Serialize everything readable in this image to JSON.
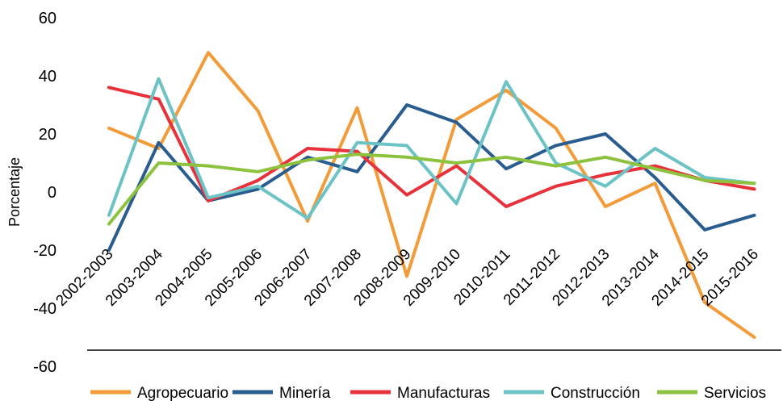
{
  "chart_data": {
    "type": "line",
    "title": "",
    "xlabel": "",
    "ylabel": "Porcentaje",
    "ylim": [
      -60,
      60
    ],
    "yticks": [
      60,
      40,
      20,
      0,
      -20,
      -40,
      -60
    ],
    "ytick_labels": [
      "60",
      "40",
      "20",
      "0",
      "-20",
      "-40",
      "-60"
    ],
    "grid": false,
    "legend_position": "bottom",
    "categories": [
      "2002-2003",
      "2003-2004",
      "2004-2005",
      "2005-2006",
      "2006-2007",
      "2007-2008",
      "2008-2009",
      "2009-2010",
      "2010-2011",
      "2011-2012",
      "2012-2013",
      "2013-2014",
      "2014-2015",
      "2015-2016"
    ],
    "series": [
      {
        "name": "Agropecuario",
        "color": "#F29B38",
        "values": [
          22,
          15,
          48,
          28,
          -10,
          29,
          -29,
          25,
          35,
          22,
          -5,
          3,
          -38,
          -50
        ]
      },
      {
        "name": "Minería",
        "color": "#2A5D8F",
        "values": [
          -20,
          17,
          -3,
          1,
          12,
          7,
          30,
          24,
          8,
          16,
          20,
          5,
          -13,
          -8
        ]
      },
      {
        "name": "Manufacturas",
        "color": "#E8323B",
        "values": [
          36,
          32,
          -3,
          4,
          15,
          14,
          -1,
          9,
          -5,
          2,
          6,
          9,
          4,
          1
        ]
      },
      {
        "name": "Construcción",
        "color": "#6CC3C6",
        "values": [
          -8,
          39,
          -2,
          2,
          -9,
          17,
          16,
          -4,
          38,
          10,
          2,
          15,
          5,
          3
        ]
      },
      {
        "name": "Servicios",
        "color": "#8DC23F",
        "values": [
          -11,
          10,
          9,
          7,
          11,
          13,
          12,
          10,
          12,
          9,
          12,
          8,
          4,
          3
        ]
      }
    ]
  }
}
